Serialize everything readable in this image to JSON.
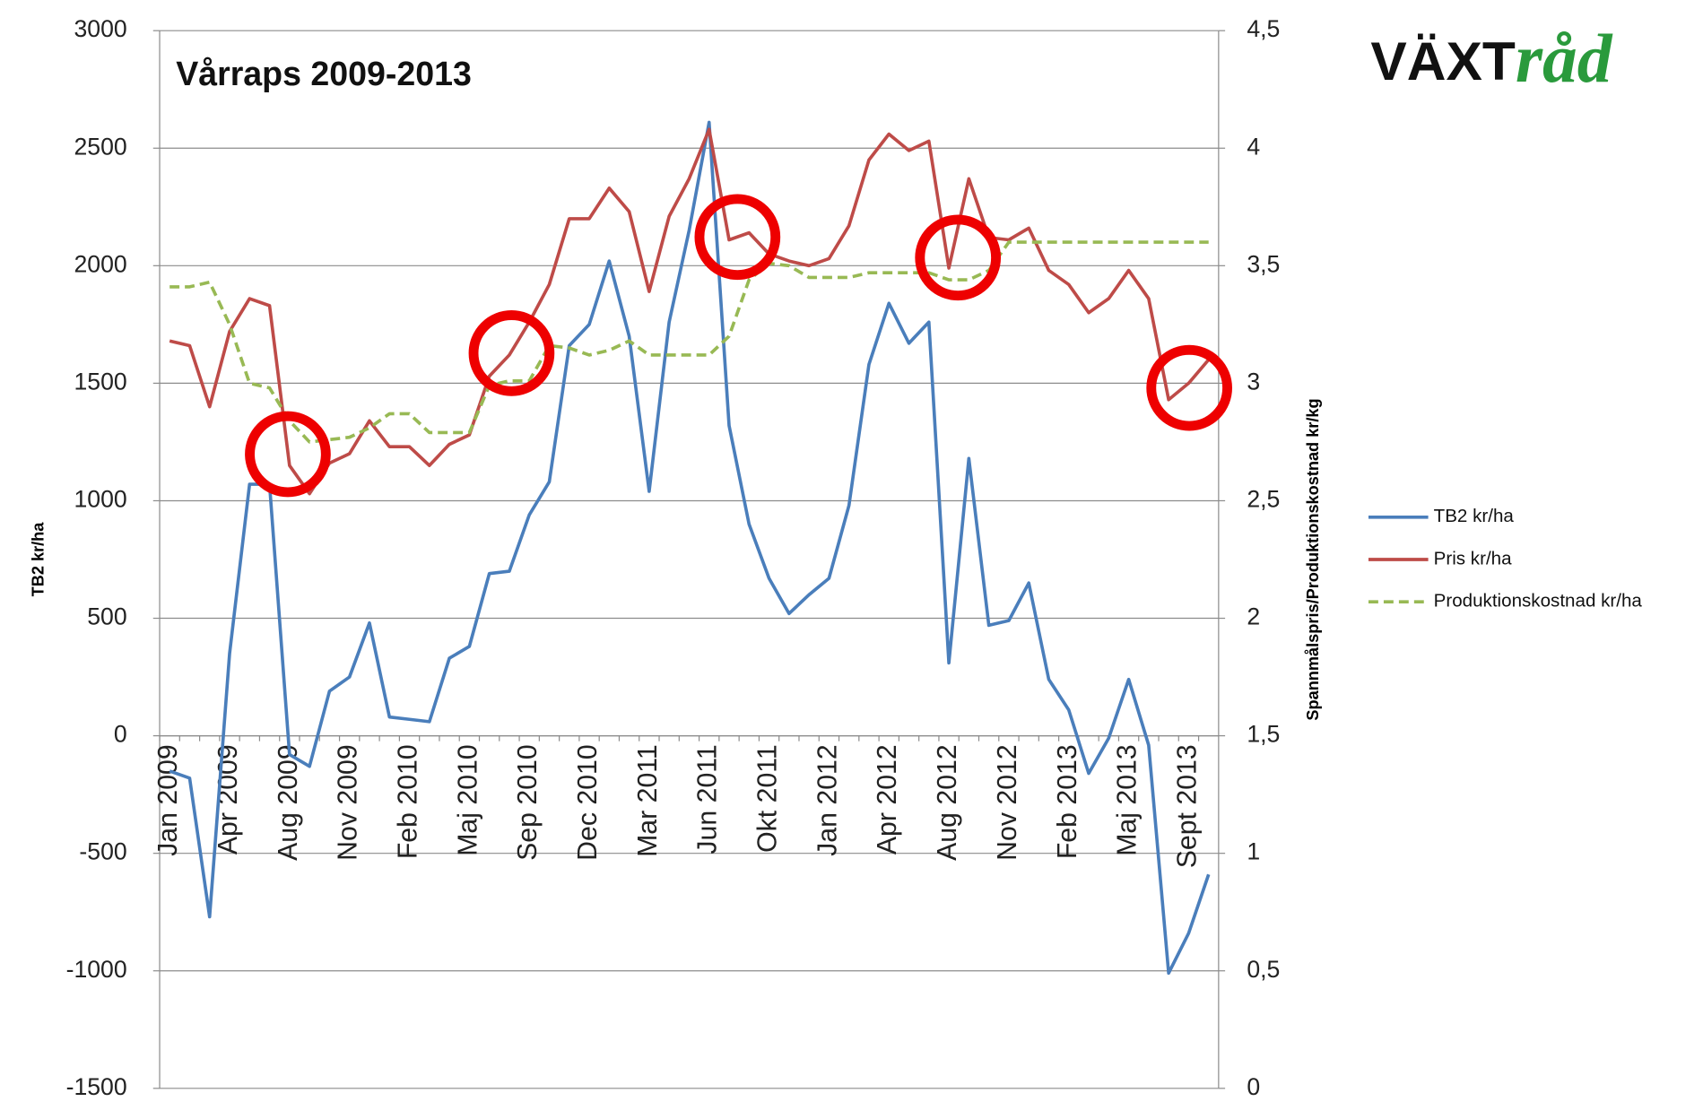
{
  "logo": [
    "VÄXT",
    "råd"
  ],
  "chart_data": {
    "type": "line",
    "title": "Vårraps 2009-2013",
    "ylabel": "TB2 kr/ha",
    "y2label": "Spannmålspris/Produktionskostnad kr/kg",
    "categories": [
      "Jan 2009",
      null,
      null,
      "Apr 2009",
      null,
      null,
      "Aug 2009",
      null,
      null,
      "Nov 2009",
      null,
      null,
      "Feb 2010",
      null,
      null,
      "Maj 2010",
      null,
      null,
      "Sep 2010",
      null,
      null,
      "Dec 2010",
      null,
      null,
      "Mar 2011",
      null,
      null,
      "Jun 2011",
      null,
      null,
      "Okt 2011",
      null,
      null,
      "Jan 2012",
      null,
      null,
      "Apr 2012",
      null,
      null,
      "Aug 2012",
      null,
      null,
      "Nov 2012",
      null,
      null,
      "Feb 2013",
      null,
      null,
      "Maj 2013",
      null,
      null,
      "Sept 2013",
      null
    ],
    "ylim": [
      -1500,
      3000
    ],
    "yticks": [
      -1500,
      -1000,
      -500,
      0,
      500,
      1000,
      1500,
      2000,
      2500,
      3000
    ],
    "y2lim": [
      0,
      4.5
    ],
    "y2ticks": [
      0,
      {
        "value": 0.5,
        "label": "0,5"
      },
      1,
      {
        "value": 1.5,
        "label": "1,5"
      },
      2,
      {
        "value": 2.5,
        "label": "2,5"
      },
      3,
      {
        "value": 3.5,
        "label": "3,5"
      },
      4,
      {
        "value": 4.5,
        "label": "4,5"
      }
    ],
    "grid": true,
    "legend": "right",
    "series": [
      {
        "name": "TB2 kr/ha",
        "color": "#4a7ebb",
        "axis": "y",
        "values": [
          -150,
          -180,
          -770,
          350,
          1070,
          1070,
          -80,
          -130,
          190,
          250,
          480,
          80,
          70,
          60,
          330,
          380,
          690,
          700,
          940,
          1080,
          1660,
          1750,
          2020,
          1700,
          1040,
          1760,
          2150,
          2610,
          1320,
          900,
          670,
          520,
          600,
          670,
          980,
          1580,
          1840,
          1670,
          1760,
          310,
          1180,
          470,
          490,
          650,
          240,
          110,
          -160,
          -10,
          240,
          -40,
          -1010,
          -840,
          -590
        ]
      },
      {
        "name": "Pris kr/ha",
        "color": "#be4b48",
        "axis": "y2",
        "values": [
          3.18,
          3.16,
          2.9,
          3.22,
          3.36,
          3.33,
          2.65,
          2.53,
          2.66,
          2.7,
          2.84,
          2.73,
          2.73,
          2.65,
          2.74,
          2.78,
          3.03,
          3.12,
          3.26,
          3.42,
          3.7,
          3.7,
          3.83,
          3.73,
          3.39,
          3.71,
          3.87,
          4.08,
          3.61,
          3.64,
          3.55,
          3.52,
          3.5,
          3.53,
          3.67,
          3.95,
          4.06,
          3.99,
          4.03,
          3.49,
          3.87,
          3.62,
          3.61,
          3.66,
          3.48,
          3.42,
          3.3,
          3.36,
          3.48,
          3.36,
          2.93,
          3.0,
          3.1
        ]
      },
      {
        "name": "Produktionskostnad kr/ha",
        "color": "#98b954",
        "axis": "y2",
        "dashed": true,
        "values": [
          3.41,
          3.41,
          3.43,
          3.25,
          3.0,
          2.98,
          2.84,
          2.75,
          2.76,
          2.77,
          2.81,
          2.87,
          2.87,
          2.79,
          2.79,
          2.79,
          2.99,
          3.01,
          3.01,
          3.16,
          3.15,
          3.12,
          3.14,
          3.18,
          3.12,
          3.12,
          3.12,
          3.12,
          3.2,
          3.44,
          3.51,
          3.5,
          3.45,
          3.45,
          3.45,
          3.47,
          3.47,
          3.47,
          3.47,
          3.44,
          3.44,
          3.48,
          3.6,
          3.6,
          3.6,
          3.6,
          3.6,
          3.6,
          3.6,
          3.6,
          3.6,
          3.6,
          3.6
        ]
      }
    ]
  }
}
